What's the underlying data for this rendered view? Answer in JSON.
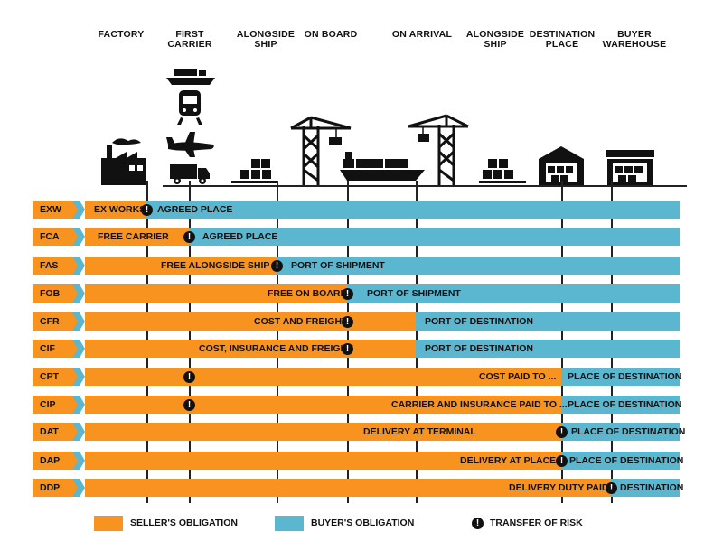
{
  "stages": [
    "FACTORY",
    "FIRST\nCARRIER",
    "ALONGSIDE\nSHIP",
    "ON BOARD",
    "ON ARRIVAL",
    "ALONGSIDE\nSHIP",
    "DESTINATION\nPLACE",
    "BUYER\nWAREHOUSE"
  ],
  "icons": [
    "factory-icon",
    "ship-icon",
    "train-icon",
    "plane-icon",
    "truck-icon",
    "pallet-icon",
    "crane-icon",
    "container-ship-icon",
    "crane-icon",
    "pallet-icon",
    "warehouse-icon",
    "warehouse-icon"
  ],
  "rows": [
    {
      "term": "EXW",
      "seller": "EX WORKS",
      "buyer": "AGREED PLACE"
    },
    {
      "term": "FCA",
      "seller": "FREE CARRIER",
      "buyer": "AGREED PLACE"
    },
    {
      "term": "FAS",
      "seller": "FREE ALONGSIDE SHIP",
      "buyer": "PORT OF SHIPMENT"
    },
    {
      "term": "FOB",
      "seller": "FREE ON BOARD",
      "buyer": "PORT OF SHIPMENT"
    },
    {
      "term": "CFR",
      "seller": "COST AND FREIGHT",
      "buyer": "PORT OF DESTINATION"
    },
    {
      "term": "CIF",
      "seller": "COST, INSURANCE AND FREIGHT",
      "buyer": "PORT OF DESTINATION"
    },
    {
      "term": "CPT",
      "seller": "COST PAID TO ...",
      "buyer": "PLACE OF DESTINATION"
    },
    {
      "term": "CIP",
      "seller": "CARRIER AND INSURANCE PAID TO ...",
      "buyer": "PLACE OF DESTINATION"
    },
    {
      "term": "DAT",
      "seller": "DELIVERY AT TERMINAL",
      "buyer": "PLACE OF DESTINATION"
    },
    {
      "term": "DAP",
      "seller": "DELIVERY AT PLACE",
      "buyer": "PLACE OF DESTINATION"
    },
    {
      "term": "DDP",
      "seller": "DELIVERY DUTY PAID",
      "buyer": "DESTINATION"
    }
  ],
  "risk_symbol": "!",
  "legend": {
    "seller": "SELLER'S OBLIGATION",
    "buyer": "BUYER'S OBLIGATION",
    "risk": "TRANSFER OF RISK"
  },
  "colors": {
    "seller": "#f7931e",
    "buyer": "#5ab7cf",
    "risk": "#111111"
  }
}
